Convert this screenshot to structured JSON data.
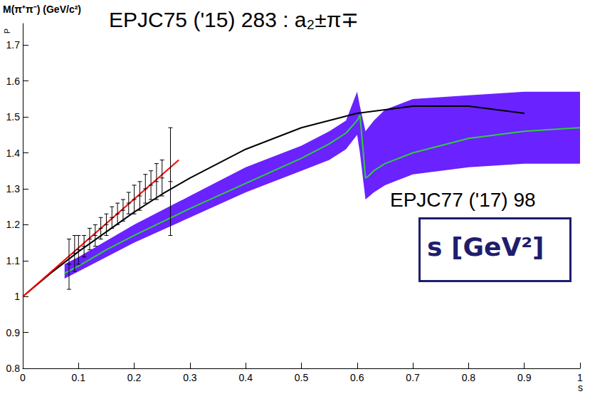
{
  "chart_data": {
    "type": "line",
    "xlabel": "s",
    "ylabel": "P",
    "annotations": [
      "M(π⁺π⁻) (GeV/c²)",
      "EPJC75 ('15) 283 : a₂±π∓",
      "EPJC77 ('17) 98",
      "s [GeV²]"
    ],
    "xlim": [
      0,
      1
    ],
    "xticks": [
      0,
      0.1,
      0.2,
      0.3,
      0.4,
      0.5,
      0.6,
      0.7,
      0.8,
      0.9,
      1
    ],
    "ylim": [
      0.8,
      1.76
    ],
    "yticks": [
      0.8,
      0.9,
      1,
      1.1,
      1.2,
      1.3,
      1.4,
      1.5,
      1.6,
      1.7
    ],
    "grid": false,
    "series": [
      {
        "type": "band",
        "color": "#6a22ff",
        "x": [
          0.075,
          0.1,
          0.2,
          0.3,
          0.4,
          0.5,
          0.55,
          0.58,
          0.6,
          0.605,
          0.615,
          0.63,
          0.65,
          0.7,
          0.8,
          0.9,
          1.0
        ],
        "lower": [
          1.05,
          1.07,
          1.15,
          1.22,
          1.29,
          1.35,
          1.38,
          1.41,
          1.45,
          1.4,
          1.27,
          1.29,
          1.31,
          1.34,
          1.36,
          1.37,
          1.37
        ],
        "upper": [
          1.09,
          1.11,
          1.2,
          1.28,
          1.36,
          1.42,
          1.46,
          1.49,
          1.57,
          1.53,
          1.46,
          1.49,
          1.52,
          1.55,
          1.56,
          1.57,
          1.57
        ]
      },
      {
        "type": "line",
        "color": "#2ecc40",
        "line_style": "solid",
        "x": [
          0.075,
          0.1,
          0.15,
          0.2,
          0.3,
          0.4,
          0.5,
          0.55,
          0.58,
          0.6,
          0.605,
          0.61,
          0.615,
          0.62,
          0.63,
          0.65,
          0.7,
          0.8,
          0.9,
          1.0
        ],
        "values": [
          1.065,
          1.085,
          1.13,
          1.17,
          1.245,
          1.315,
          1.385,
          1.425,
          1.455,
          1.49,
          1.505,
          1.42,
          1.33,
          1.335,
          1.35,
          1.37,
          1.4,
          1.44,
          1.46,
          1.47
        ]
      },
      {
        "type": "line",
        "color": "#000000",
        "line_style": "solid",
        "x": [
          0,
          0.05,
          0.1,
          0.15,
          0.2,
          0.25,
          0.3,
          0.4,
          0.5,
          0.6,
          0.7,
          0.8,
          0.9
        ],
        "values": [
          1,
          1.065,
          1.125,
          1.18,
          1.235,
          1.285,
          1.33,
          1.41,
          1.47,
          1.51,
          1.53,
          1.53,
          1.51
        ]
      },
      {
        "type": "line",
        "color": "#ff0000",
        "line_style": "solid",
        "x": [
          0,
          0.28
        ],
        "values": [
          1,
          1.38
        ]
      },
      {
        "type": "errorbar",
        "color": "#000000",
        "x": [
          0.083,
          0.093,
          0.1,
          0.11,
          0.12,
          0.13,
          0.14,
          0.15,
          0.16,
          0.17,
          0.18,
          0.19,
          0.2,
          0.21,
          0.22,
          0.23,
          0.24,
          0.25,
          0.265
        ],
        "values": [
          1.09,
          1.12,
          1.13,
          1.14,
          1.16,
          1.17,
          1.19,
          1.2,
          1.22,
          1.23,
          1.24,
          1.26,
          1.27,
          1.28,
          1.3,
          1.31,
          1.32,
          1.33,
          1.32
        ],
        "errors": [
          0.07,
          0.05,
          0.04,
          0.03,
          0.03,
          0.03,
          0.03,
          0.03,
          0.03,
          0.03,
          0.03,
          0.03,
          0.04,
          0.04,
          0.04,
          0.04,
          0.05,
          0.05,
          0.15
        ]
      }
    ]
  }
}
